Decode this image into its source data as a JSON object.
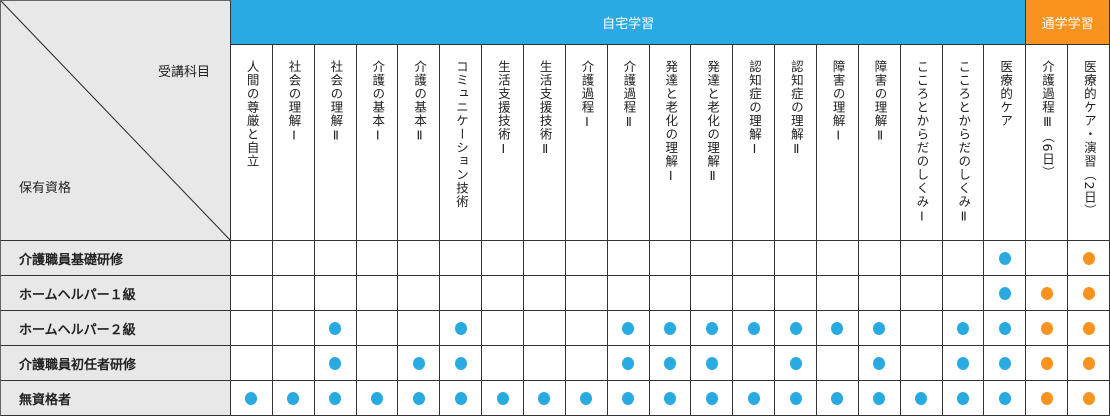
{
  "colors": {
    "home": "#29abe2",
    "school": "#f7931e",
    "header_bg": "#e8e8e8"
  },
  "corner": {
    "subjects_label": "受講科目",
    "qualification_label": "保有資格"
  },
  "groups": [
    {
      "label": "自宅学習",
      "type": "home",
      "span": 19
    },
    {
      "label": "通学学習",
      "type": "school",
      "span": 2
    }
  ],
  "columns": [
    "人間の尊厳と自立",
    "社会の理解Ⅰ",
    "社会の理解Ⅱ",
    "介護の基本Ⅰ",
    "介護の基本Ⅱ",
    "コミュニケーション技術",
    "生活支援技術Ⅰ",
    "生活支援技術Ⅱ",
    "介護過程Ⅰ",
    "介護過程Ⅱ",
    "発達と老化の理解Ⅰ",
    "発達と老化の理解Ⅱ",
    "認知症の理解Ⅰ",
    "認知症の理解Ⅱ",
    "障害の理解Ⅰ",
    "障害の理解Ⅱ",
    "こころとからだのしくみⅠ",
    "こころとからだのしくみⅡ",
    "医療的ケア",
    "介護過程Ⅲ（6日）",
    "医療的ケア・演習（2日）"
  ],
  "rows": [
    {
      "label": "介護職員基礎研修",
      "required": [
        18,
        20
      ]
    },
    {
      "label": "ホームヘルパー１級",
      "required": [
        18,
        19,
        20
      ]
    },
    {
      "label": "ホームヘルパー２級",
      "required": [
        2,
        5,
        9,
        10,
        11,
        12,
        13,
        14,
        15,
        17,
        18,
        19,
        20
      ]
    },
    {
      "label": "介護職員初任者研修",
      "required": [
        2,
        4,
        5,
        9,
        10,
        11,
        13,
        15,
        17,
        18,
        19,
        20
      ]
    },
    {
      "label": "無資格者",
      "required": [
        0,
        1,
        2,
        3,
        4,
        5,
        6,
        7,
        8,
        9,
        10,
        11,
        12,
        13,
        14,
        15,
        16,
        17,
        18,
        19,
        20
      ]
    }
  ]
}
